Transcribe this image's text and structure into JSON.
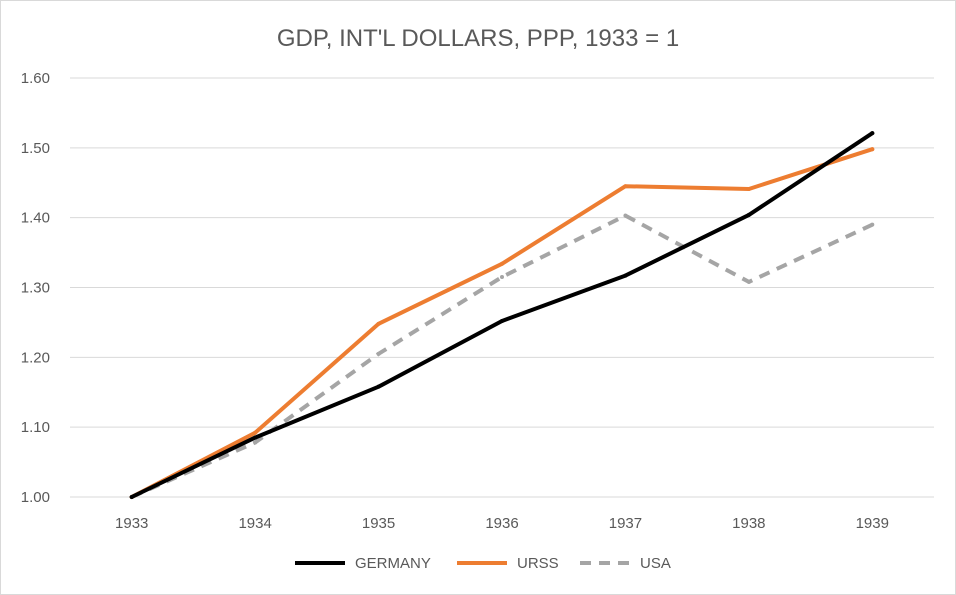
{
  "chart_data": {
    "type": "line",
    "title": "GDP, INT'L DOLLARS, PPP, 1933 = 1",
    "xlabel": "",
    "ylabel": "",
    "categories": [
      "1933",
      "1934",
      "1935",
      "1936",
      "1937",
      "1938",
      "1939"
    ],
    "ylim": [
      1.0,
      1.6
    ],
    "yticks": [
      "1.00",
      "1.10",
      "1.20",
      "1.30",
      "1.40",
      "1.50",
      "1.60"
    ],
    "grid": true,
    "legend_position": "bottom",
    "series": [
      {
        "name": "GERMANY",
        "color": "#000000",
        "dash": "solid",
        "values": [
          1.0,
          1.085,
          1.158,
          1.252,
          1.317,
          1.404,
          1.521
        ]
      },
      {
        "name": "URSS",
        "color": "#ed7d31",
        "dash": "solid",
        "values": [
          1.0,
          1.092,
          1.248,
          1.334,
          1.445,
          1.441,
          1.498
        ]
      },
      {
        "name": "USA",
        "color": "#a5a5a5",
        "dash": "dashed",
        "values": [
          1.0,
          1.078,
          1.205,
          1.315,
          1.403,
          1.308,
          1.39
        ]
      }
    ]
  }
}
